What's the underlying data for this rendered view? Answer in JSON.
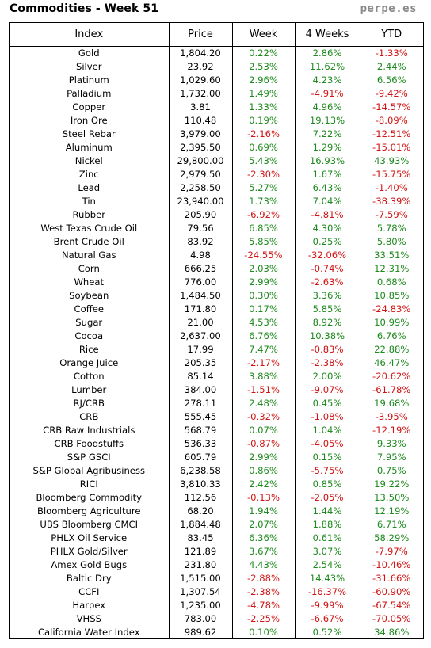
{
  "header": {
    "title": "Commodities - Week 51",
    "brand": "perpe.es"
  },
  "colors": {
    "positive": "#1f8a1f",
    "negative": "#d21414"
  },
  "table": {
    "columns": [
      "Index",
      "Price",
      "Week",
      "4 Weeks",
      "YTD"
    ],
    "rows": [
      [
        "Gold",
        "1,804.20",
        "0.22%",
        "2.86%",
        "-1.33%"
      ],
      [
        "Silver",
        "23.92",
        "2.53%",
        "11.62%",
        "2.44%"
      ],
      [
        "Platinum",
        "1,029.60",
        "2.96%",
        "4.23%",
        "6.56%"
      ],
      [
        "Palladium",
        "1,732.00",
        "1.49%",
        "-4.91%",
        "-9.42%"
      ],
      [
        "Copper",
        "3.81",
        "1.33%",
        "4.96%",
        "-14.57%"
      ],
      [
        "Iron Ore",
        "110.48",
        "0.19%",
        "19.13%",
        "-8.09%"
      ],
      [
        "Steel Rebar",
        "3,979.00",
        "-2.16%",
        "7.22%",
        "-12.51%"
      ],
      [
        "Aluminum",
        "2,395.50",
        "0.69%",
        "1.29%",
        "-15.01%"
      ],
      [
        "Nickel",
        "29,800.00",
        "5.43%",
        "16.93%",
        "43.93%"
      ],
      [
        "Zinc",
        "2,979.50",
        "-2.30%",
        "1.67%",
        "-15.75%"
      ],
      [
        "Lead",
        "2,258.50",
        "5.27%",
        "6.43%",
        "-1.40%"
      ],
      [
        "Tin",
        "23,940.00",
        "1.73%",
        "7.04%",
        "-38.39%"
      ],
      [
        "Rubber",
        "205.90",
        "-6.92%",
        "-4.81%",
        "-7.59%"
      ],
      [
        "West Texas Crude Oil",
        "79.56",
        "6.85%",
        "4.30%",
        "5.78%"
      ],
      [
        "Brent Crude Oil",
        "83.92",
        "5.85%",
        "0.25%",
        "5.80%"
      ],
      [
        "Natural Gas",
        "4.98",
        "-24.55%",
        "-32.06%",
        "33.51%"
      ],
      [
        "Corn",
        "666.25",
        "2.03%",
        "-0.74%",
        "12.31%"
      ],
      [
        "Wheat",
        "776.00",
        "2.99%",
        "-2.63%",
        "0.68%"
      ],
      [
        "Soybean",
        "1,484.50",
        "0.30%",
        "3.36%",
        "10.85%"
      ],
      [
        "Coffee",
        "171.80",
        "0.17%",
        "5.85%",
        "-24.83%"
      ],
      [
        "Sugar",
        "21.00",
        "4.53%",
        "8.92%",
        "10.99%"
      ],
      [
        "Cocoa",
        "2,637.00",
        "6.76%",
        "10.38%",
        "6.76%"
      ],
      [
        "Rice",
        "17.99",
        "7.47%",
        "-0.83%",
        "22.88%"
      ],
      [
        "Orange Juice",
        "205.35",
        "-2.17%",
        "-2.38%",
        "46.47%"
      ],
      [
        "Cotton",
        "85.14",
        "3.88%",
        "2.00%",
        "-20.62%"
      ],
      [
        "Lumber",
        "384.00",
        "-1.51%",
        "-9.07%",
        "-61.78%"
      ],
      [
        "RJ/CRB",
        "278.11",
        "2.48%",
        "0.45%",
        "19.68%"
      ],
      [
        "CRB",
        "555.45",
        "-0.32%",
        "-1.08%",
        "-3.95%"
      ],
      [
        "CRB Raw Industrials",
        "568.79",
        "0.07%",
        "1.04%",
        "-12.19%"
      ],
      [
        "CRB Foodstuffs",
        "536.33",
        "-0.87%",
        "-4.05%",
        "9.33%"
      ],
      [
        "S&P GSCI",
        "605.79",
        "2.99%",
        "0.15%",
        "7.95%"
      ],
      [
        "S&P Global Agribusiness",
        "6,238.58",
        "0.86%",
        "-5.75%",
        "0.75%"
      ],
      [
        "RICI",
        "3,810.33",
        "2.42%",
        "0.85%",
        "19.22%"
      ],
      [
        "Bloomberg Commodity",
        "112.56",
        "-0.13%",
        "-2.05%",
        "13.50%"
      ],
      [
        "Bloomberg Agriculture",
        "68.20",
        "1.94%",
        "1.44%",
        "12.19%"
      ],
      [
        "UBS Bloomberg CMCI",
        "1,884.48",
        "2.07%",
        "1.88%",
        "6.71%"
      ],
      [
        "PHLX Oil Service",
        "83.45",
        "6.36%",
        "0.61%",
        "58.29%"
      ],
      [
        "PHLX Gold/Silver",
        "121.89",
        "3.67%",
        "3.07%",
        "-7.97%"
      ],
      [
        "Amex Gold Bugs",
        "231.80",
        "4.43%",
        "2.54%",
        "-10.46%"
      ],
      [
        "Baltic Dry",
        "1,515.00",
        "-2.88%",
        "14.43%",
        "-31.66%"
      ],
      [
        "CCFI",
        "1,307.54",
        "-2.38%",
        "-16.37%",
        "-60.90%"
      ],
      [
        "Harpex",
        "1,235.00",
        "-4.78%",
        "-9.99%",
        "-67.54%"
      ],
      [
        "VHSS",
        "783.00",
        "-2.25%",
        "-6.67%",
        "-70.05%"
      ],
      [
        "California Water Index",
        "989.62",
        "0.10%",
        "0.52%",
        "34.86%"
      ]
    ]
  }
}
